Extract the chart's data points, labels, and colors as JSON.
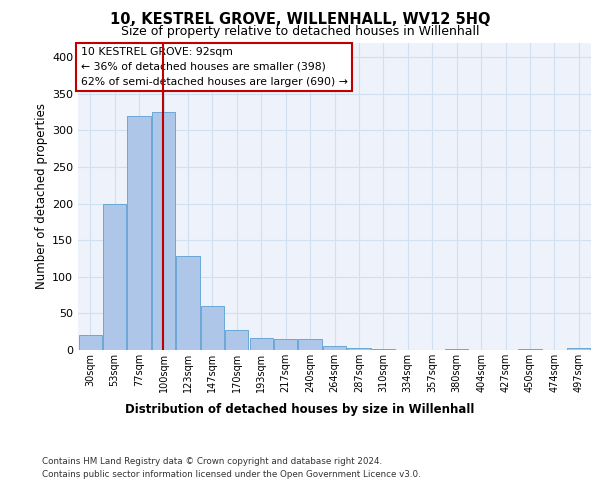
{
  "title": "10, KESTREL GROVE, WILLENHALL, WV12 5HQ",
  "subtitle": "Size of property relative to detached houses in Willenhall",
  "xlabel": "Distribution of detached houses by size in Willenhall",
  "ylabel": "Number of detached properties",
  "bin_labels": [
    "30sqm",
    "53sqm",
    "77sqm",
    "100sqm",
    "123sqm",
    "147sqm",
    "170sqm",
    "193sqm",
    "217sqm",
    "240sqm",
    "264sqm",
    "287sqm",
    "310sqm",
    "334sqm",
    "357sqm",
    "380sqm",
    "404sqm",
    "427sqm",
    "450sqm",
    "474sqm",
    "497sqm"
  ],
  "bar_values": [
    20,
    200,
    320,
    325,
    128,
    60,
    27,
    17,
    15,
    15,
    5,
    3,
    1,
    0,
    0,
    1,
    0,
    0,
    1,
    0,
    3
  ],
  "bar_color": "#aec6e8",
  "bar_edge_color": "#5a9fd4",
  "grid_color": "#d0e0f0",
  "background_color": "#eef2fa",
  "vline_color": "#c00000",
  "annotation_text": "10 KESTREL GROVE: 92sqm\n← 36% of detached houses are smaller (398)\n62% of semi-detached houses are larger (690) →",
  "annotation_box_color": "#ffffff",
  "annotation_border_color": "#c00000",
  "ylim": [
    0,
    420
  ],
  "yticks": [
    0,
    50,
    100,
    150,
    200,
    250,
    300,
    350,
    400
  ],
  "footer_line1": "Contains HM Land Registry data © Crown copyright and database right 2024.",
  "footer_line2": "Contains public sector information licensed under the Open Government Licence v3.0."
}
